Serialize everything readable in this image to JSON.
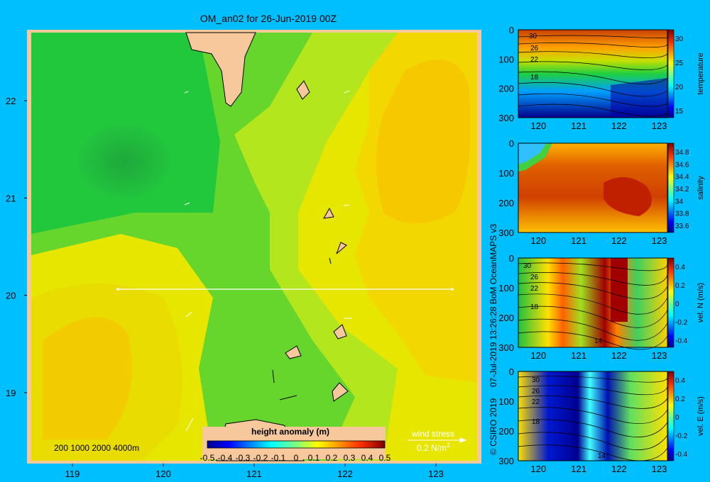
{
  "colors": {
    "background": "#00bfff",
    "land": "#f7c89b",
    "wind_arrow": "#ffffff",
    "transect_line": "#ffffff"
  },
  "main_map": {
    "title": "OM_an02 for 26-Jun-2019 00Z",
    "x_ticks": [
      "119",
      "120",
      "121",
      "122",
      "123"
    ],
    "y_ticks": [
      "22",
      "21",
      "20",
      "19"
    ],
    "depth_legend": "200  1000  2000  4000m",
    "wind_label": "wind stress",
    "wind_scale": "0.2 N/m",
    "wind_scale_sup": "2",
    "colorbar_label": "height anomaly  (m)",
    "colorbar_ticks": [
      "-0.5",
      "-0.4",
      "-0.3",
      "-0.2",
      "-0.1",
      "0",
      "0.1",
      "0.2",
      "0.3",
      "0.4",
      "0.5"
    ]
  },
  "credits": {
    "copyright": "© CSIRO 2019",
    "timestamp": "07-Jul-2019 13:26:28 BoM OceanMAPS v3"
  },
  "chart_data": [
    {
      "type": "heatmap",
      "title": "OM_an02 for 26-Jun-2019 00Z",
      "variable": "height anomaly (m)",
      "x_range": [
        118.5,
        123.5
      ],
      "y_range": [
        18.3,
        22.7
      ],
      "color_range": [
        -0.5,
        0.5
      ],
      "transect": {
        "x": [
          119.5,
          123.2
        ],
        "y": [
          20,
          20
        ]
      },
      "regions": [
        {
          "region": "west",
          "value": -0.1
        },
        {
          "region": "northwest eddy",
          "value": -0.15
        },
        {
          "region": "center channel",
          "value": 0.0
        },
        {
          "region": "east",
          "value": 0.15
        },
        {
          "region": "southwest",
          "value": 0.1
        }
      ]
    },
    {
      "type": "heatmap",
      "variable": "temperature",
      "x_ticks": [
        "120",
        "121",
        "122",
        "123"
      ],
      "y_ticks": [
        "0",
        "100",
        "200",
        "300"
      ],
      "y_range": [
        0,
        300
      ],
      "colorbar_ticks": [
        "30",
        "25",
        "20",
        "15"
      ],
      "contour_labels": [
        "30",
        "26",
        "22",
        "18"
      ]
    },
    {
      "type": "heatmap",
      "variable": "salinity",
      "x_ticks": [
        "120",
        "121",
        "122",
        "123"
      ],
      "y_ticks": [
        "0",
        "100",
        "200",
        "300"
      ],
      "y_range": [
        0,
        300
      ],
      "colorbar_ticks": [
        "34.8",
        "34.6",
        "34.4",
        "34.2",
        "34",
        "33.8",
        "33.6"
      ]
    },
    {
      "type": "heatmap",
      "variable": "vel. N (m/s)",
      "x_ticks": [
        "120",
        "121",
        "122",
        "123"
      ],
      "y_ticks": [
        "0",
        "100",
        "200",
        "300"
      ],
      "y_range": [
        0,
        300
      ],
      "colorbar_ticks": [
        "0.4",
        "0.2",
        "0",
        "-0.2",
        "-0.4"
      ],
      "contour_labels": [
        "30",
        "26",
        "22",
        "18",
        "14"
      ]
    },
    {
      "type": "heatmap",
      "variable": "vel. E (m/s)",
      "x_ticks": [
        "120",
        "121",
        "122",
        "123"
      ],
      "y_ticks": [
        "0",
        "100",
        "200",
        "300"
      ],
      "y_range": [
        0,
        300
      ],
      "colorbar_ticks": [
        "0.4",
        "0.2",
        "0",
        "-0.2",
        "-0.4"
      ],
      "contour_labels": [
        "30",
        "26",
        "22",
        "18",
        "14"
      ]
    }
  ]
}
